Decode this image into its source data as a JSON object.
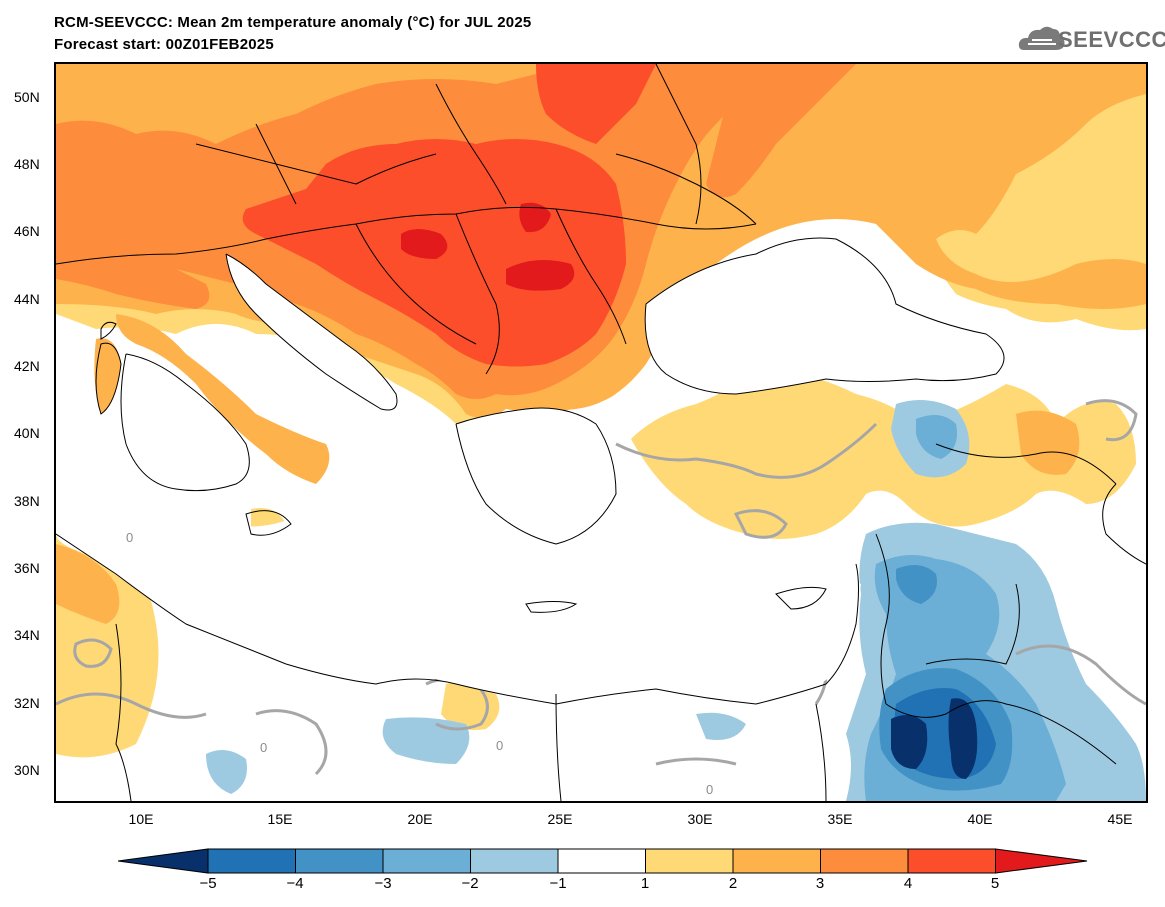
{
  "header": {
    "title": "RCM-SEEVCCC: Mean 2m temperature anomaly (°C) for JUL 2025",
    "subtitle": "Forecast start: 00Z01FEB2025",
    "logo_text": "SEEVCCC"
  },
  "map": {
    "lat_labels": [
      "50N",
      "48N",
      "46N",
      "44N",
      "42N",
      "40N",
      "38N",
      "36N",
      "34N",
      "32N",
      "30N"
    ],
    "lon_labels": [
      "10E",
      "15E",
      "20E",
      "25E",
      "30E",
      "35E",
      "40E",
      "45E"
    ],
    "contour_zero_label": "0"
  },
  "colorbar": {
    "ticks": [
      "−5",
      "−4",
      "−3",
      "−2",
      "−1",
      "1",
      "2",
      "3",
      "4",
      "5"
    ],
    "colors": [
      "#08306b",
      "#2171b5",
      "#4292c6",
      "#6baed6",
      "#9ecae1",
      "#ffffff",
      "#fed976",
      "#feb24c",
      "#fd8d3c",
      "#fc4e2a",
      "#e31a1c"
    ]
  }
}
